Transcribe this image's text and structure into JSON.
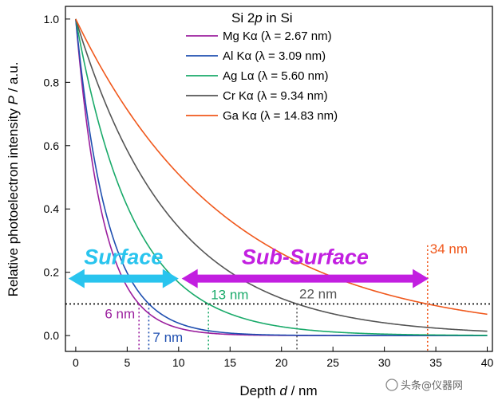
{
  "chart_data": {
    "type": "line",
    "title": "Si 2p in Si",
    "xlabel": "Depth d / nm",
    "ylabel": "Relative photoelectron intensity P / a.u.",
    "xlim": [
      -1,
      40.5
    ],
    "ylim": [
      -0.05,
      1.04
    ],
    "x_ticks": [
      0,
      5,
      10,
      15,
      20,
      25,
      30,
      35,
      40
    ],
    "y_ticks": [
      0.0,
      0.2,
      0.4,
      0.6,
      0.8,
      1.0
    ],
    "x_tick_labels": [
      "0",
      "5",
      "10",
      "15",
      "20",
      "25",
      "30",
      "35",
      "40"
    ],
    "y_tick_labels": [
      "0.0",
      "0.2",
      "0.4",
      "0.6",
      "0.8",
      "1.0"
    ],
    "legend_position": "top-right",
    "series": [
      {
        "name": "Mg Kα (λ = 2.67 nm)",
        "lambda": 2.67,
        "color": "#9b1f9e"
      },
      {
        "name": "Al Kα (λ = 3.09 nm)",
        "lambda": 3.09,
        "color": "#1f4fb0"
      },
      {
        "name": "Ag Lα (λ = 5.60 nm)",
        "lambda": 5.6,
        "color": "#1aaa6a"
      },
      {
        "name": "Cr Kα (λ = 9.34 nm)",
        "lambda": 9.34,
        "color": "#555555"
      },
      {
        "name": "Ga Kα (λ = 14.83 nm)",
        "lambda": 14.83,
        "color": "#f0581c"
      }
    ],
    "model": "P = exp(-d/λ)",
    "threshold_y": 0.1,
    "depth_markers": [
      {
        "x": 6.15,
        "label": "6 nm",
        "color": "#9b1f9e"
      },
      {
        "x": 7.1,
        "label": "7 nm",
        "color": "#1f4fb0"
      },
      {
        "x": 12.9,
        "label": "13 nm",
        "color": "#1aaa6a"
      },
      {
        "x": 21.5,
        "label": "22 nm",
        "color": "#555555"
      },
      {
        "x": 34.2,
        "label": "34 nm",
        "color": "#f0581c"
      }
    ],
    "regions": [
      {
        "label": "Surface",
        "x_from": -0.7,
        "x_to": 10,
        "y": 0.18,
        "color": "#29c4ee"
      },
      {
        "label": "Sub-Surface",
        "x_from": 10.3,
        "x_to": 34.3,
        "y": 0.18,
        "color": "#c21fe0"
      }
    ]
  },
  "watermark": "头条@仪器网"
}
